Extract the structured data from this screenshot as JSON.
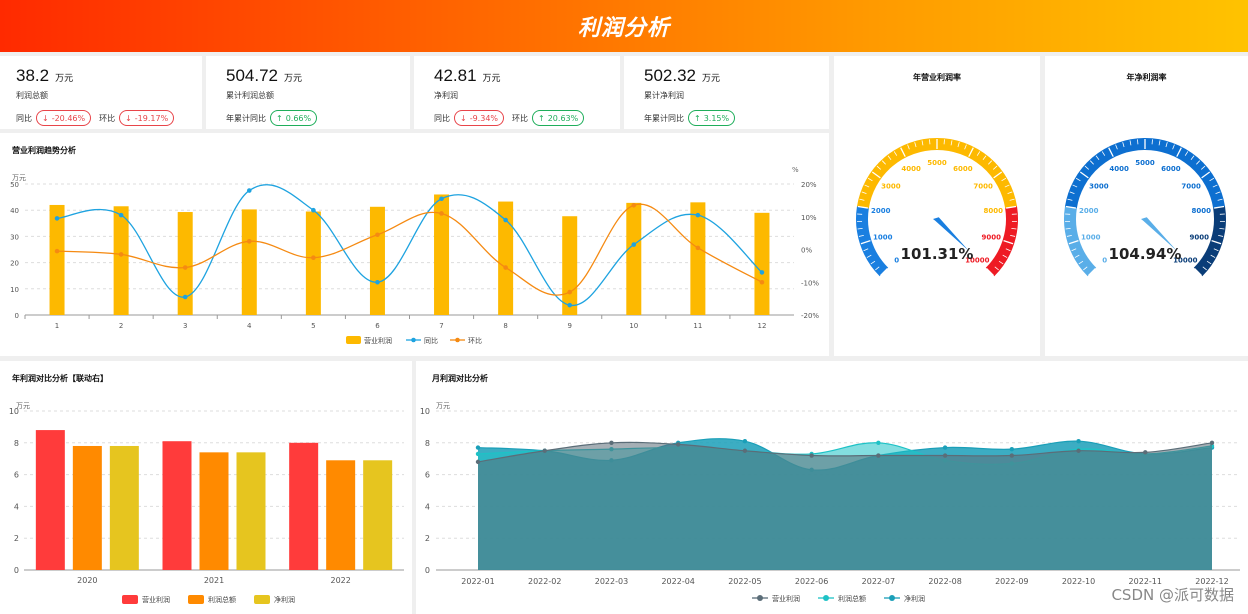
{
  "header": {
    "title": "利润分析"
  },
  "kpis": [
    {
      "value": "38.2",
      "unit": "万元",
      "label": "利润总额",
      "rows": [
        {
          "label": "同比",
          "pill": "-20.46%",
          "dir": "down"
        },
        {
          "label": "环比",
          "pill": "-19.17%",
          "dir": "down"
        }
      ]
    },
    {
      "value": "504.72",
      "unit": "万元",
      "label": "累计利润总额",
      "rows": [
        {
          "label": "年累计同比",
          "pill": "0.66%",
          "dir": "up"
        }
      ]
    },
    {
      "value": "42.81",
      "unit": "万元",
      "label": "净利润",
      "rows": [
        {
          "label": "同比",
          "pill": "-9.34%",
          "dir": "down"
        },
        {
          "label": "环比",
          "pill": "20.63%",
          "dir": "up"
        }
      ]
    },
    {
      "value": "502.32",
      "unit": "万元",
      "label": "累计净利润",
      "rows": [
        {
          "label": "年累计同比",
          "pill": "3.15%",
          "dir": "up"
        }
      ]
    }
  ],
  "icons": {
    "down": "arrow-down-icon",
    "up": "arrow-up-icon",
    "down_glyph": "↓",
    "up_glyph": "↑"
  },
  "gauges": [
    {
      "title": "年营业利润率",
      "value": "101.31%",
      "pointer": 10131,
      "min": 0,
      "max": 10000,
      "ticks": [
        "0",
        "1000",
        "2000",
        "3000",
        "4000",
        "5000",
        "6000",
        "7000",
        "8000",
        "9000",
        "10000"
      ],
      "bands": [
        {
          "to": 0.2,
          "color": "#1a7fe0"
        },
        {
          "to": 0.8,
          "color": "#fdb900"
        },
        {
          "to": 1.0,
          "color": "#ee1b24"
        }
      ]
    },
    {
      "title": "年净利润率",
      "value": "104.94%",
      "pointer": 10494,
      "min": 0,
      "max": 10000,
      "ticks": [
        "0",
        "1000",
        "2000",
        "3000",
        "4000",
        "5000",
        "6000",
        "7000",
        "8000",
        "9000",
        "10000"
      ],
      "bands": [
        {
          "to": 0.2,
          "color": "#5aaee8"
        },
        {
          "to": 0.8,
          "color": "#0d6fd0"
        },
        {
          "to": 1.0,
          "color": "#0a3d78"
        }
      ]
    }
  ],
  "trend": {
    "title": "营业利润趋势分析",
    "left_unit": "万元",
    "right_unit": "%",
    "legend": [
      "营业利润",
      "同比",
      "环比"
    ],
    "colors": {
      "bar": "#fdb900",
      "yoy": "#1ea3e0",
      "mom": "#f58a12"
    }
  },
  "annual": {
    "title": "年利润对比分析【联动右】",
    "unit": "万元",
    "legend": [
      "营业利润",
      "利润总额",
      "净利润"
    ],
    "colors": [
      "#ff3b3b",
      "#ff8a00",
      "#e6c51f"
    ]
  },
  "monthly": {
    "title": "月利润对比分析",
    "unit": "万元",
    "legend": [
      "营业利润",
      "利润总额",
      "净利润"
    ],
    "colors": [
      "#5b6d78",
      "#1ec2c6",
      "#1a9fb8"
    ]
  },
  "chart_data": [
    {
      "type": "bar",
      "title": "营业利润趋势分析",
      "categories": [
        "1",
        "2",
        "3",
        "4",
        "5",
        "6",
        "7",
        "8",
        "9",
        "10",
        "11",
        "12"
      ],
      "ylim": [
        0,
        50
      ],
      "y2lim": [
        -20,
        20
      ],
      "yticks": [
        "0",
        "10",
        "20",
        "30",
        "40",
        "50"
      ],
      "y2ticks": [
        "-20%",
        "-10%",
        "0%",
        "10%",
        "20%"
      ],
      "series": [
        {
          "name": "营业利润",
          "type": "bar",
          "values": [
            42,
            41.5,
            39.3,
            40.3,
            39.5,
            41.3,
            46,
            43.3,
            37.7,
            42.8,
            43,
            39
          ]
        },
        {
          "name": "同比",
          "type": "line",
          "axis": "right",
          "values": [
            9.5,
            10.5,
            -14.5,
            18,
            12,
            -10,
            15.5,
            9,
            -17,
            1.5,
            10.5,
            -7
          ]
        },
        {
          "name": "环比",
          "type": "line",
          "axis": "right",
          "values": [
            -0.5,
            -1.5,
            -5.5,
            2.5,
            -2.5,
            4.5,
            11,
            -5.5,
            -13,
            13.5,
            0.5,
            -10
          ]
        }
      ]
    },
    {
      "type": "bar",
      "title": "年利润对比分析【联动右】",
      "categories": [
        "2020",
        "2021",
        "2022"
      ],
      "ylim": [
        0,
        10
      ],
      "yticks": [
        "0",
        "2",
        "4",
        "6",
        "8",
        "10"
      ],
      "series": [
        {
          "name": "营业利润",
          "values": [
            8.8,
            8.1,
            8.0
          ]
        },
        {
          "name": "利润总额",
          "values": [
            7.8,
            7.4,
            6.9
          ]
        },
        {
          "name": "净利润",
          "values": [
            7.8,
            7.4,
            6.9
          ]
        }
      ]
    },
    {
      "type": "area",
      "title": "月利润对比分析",
      "categories": [
        "2022-01",
        "2022-02",
        "2022-03",
        "2022-04",
        "2022-05",
        "2022-06",
        "2022-07",
        "2022-08",
        "2022-09",
        "2022-10",
        "2022-11",
        "2022-12"
      ],
      "ylim": [
        0,
        10
      ],
      "yticks": [
        "0",
        "2",
        "4",
        "6",
        "8",
        "10"
      ],
      "series": [
        {
          "name": "营业利润",
          "values": [
            6.8,
            7.5,
            8.0,
            7.9,
            7.5,
            7.2,
            7.2,
            7.2,
            7.2,
            7.5,
            7.4,
            8.0
          ]
        },
        {
          "name": "利润总额",
          "values": [
            7.3,
            7.5,
            7.6,
            7.7,
            7.5,
            7.3,
            8.0,
            6.9,
            6.7,
            7.6,
            7.3,
            7.8
          ]
        },
        {
          "name": "净利润",
          "values": [
            7.7,
            7.5,
            6.9,
            8.0,
            8.1,
            6.3,
            7.2,
            7.7,
            7.6,
            8.1,
            7.3,
            7.7
          ]
        }
      ]
    }
  ]
}
